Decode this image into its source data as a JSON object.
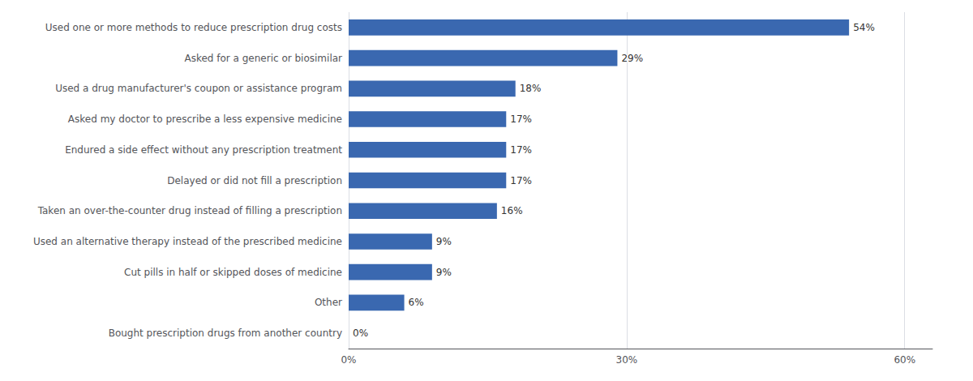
{
  "chart_data": {
    "type": "bar",
    "orientation": "horizontal",
    "categories": [
      "Bought prescription drugs from another country",
      "Other",
      "Cut pills in half or skipped doses of medicine",
      "Used an alternative therapy instead of the prescribed medicine",
      "Taken an over-the-counter drug instead of filling a prescription",
      "Delayed or did not fill a prescription",
      "Endured a side effect without any prescription treatment",
      "Asked my doctor to prescribe a less expensive medicine",
      "Used a drug manufacturer's coupon or assistance program",
      "Asked for a generic or biosimilar",
      "Used one or more methods to reduce prescription drug costs"
    ],
    "values": [
      0,
      6,
      9,
      9,
      16,
      17,
      17,
      17,
      18,
      29,
      54
    ],
    "value_labels": [
      "0%",
      "6%",
      "9%",
      "9%",
      "16%",
      "17%",
      "17%",
      "17%",
      "18%",
      "29%",
      "54%"
    ],
    "color": "#3a68b0",
    "xlim": [
      0,
      63
    ],
    "xticks": [
      {
        "value": 0,
        "label": "0%"
      },
      {
        "value": 30,
        "label": "30%"
      },
      {
        "value": 60,
        "label": "60%"
      }
    ],
    "grid": true,
    "data_labels": true
  }
}
